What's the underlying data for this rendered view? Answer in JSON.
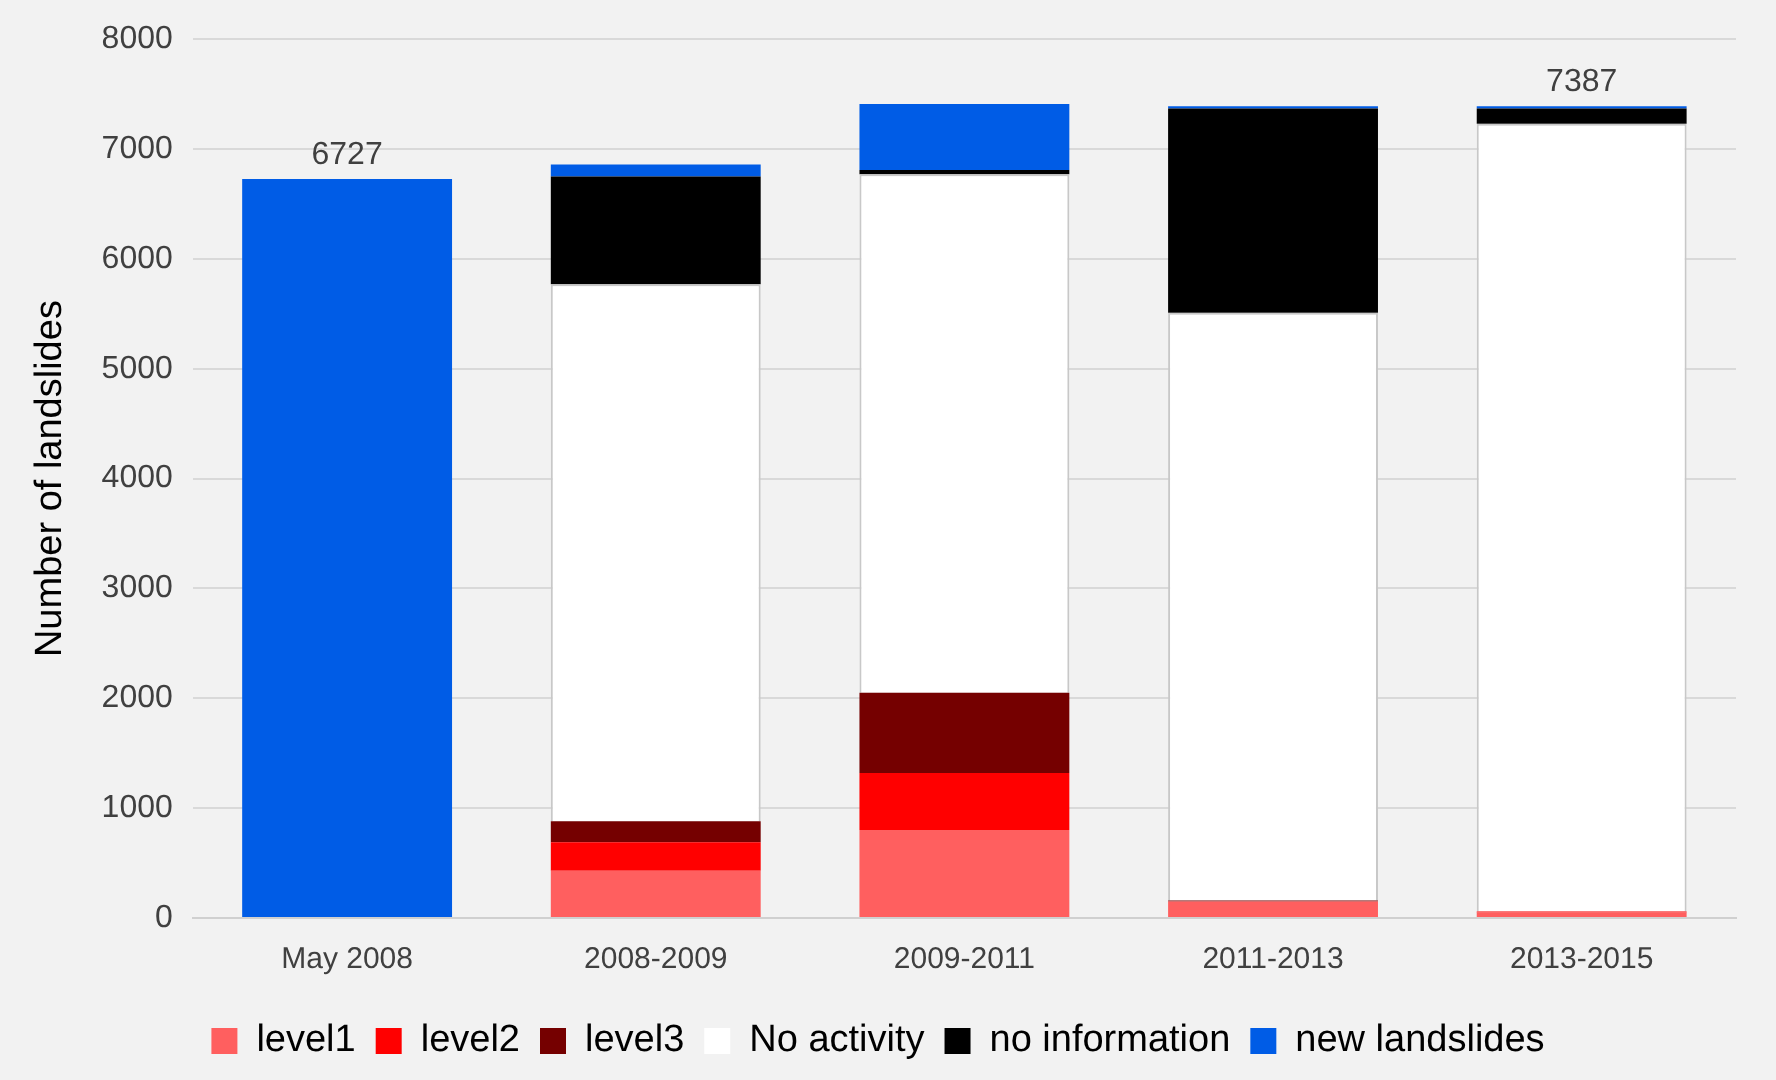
{
  "chart_data": {
    "type": "bar",
    "stacked": true,
    "ylabel": "Number of landslides",
    "categories": [
      "May 2008",
      "2008-2009",
      "2009-2011",
      "2011-2013",
      "2013-2015"
    ],
    "series": [
      {
        "name": "level1",
        "color": "#ff5f5f",
        "values": [
          0,
          430,
          800,
          150,
          50
        ]
      },
      {
        "name": "level2",
        "color": "#ff0000",
        "values": [
          0,
          260,
          520,
          0,
          10
        ]
      },
      {
        "name": "level3",
        "color": "#750000",
        "values": [
          0,
          190,
          730,
          10,
          0
        ]
      },
      {
        "name": "No activity",
        "color": "#ffffff",
        "values": [
          0,
          4890,
          4720,
          5350,
          7170
        ]
      },
      {
        "name": "no information",
        "color": "#000000",
        "values": [
          0,
          980,
          40,
          1860,
          140
        ]
      },
      {
        "name": "new landslides",
        "color": "#005ce6",
        "values": [
          6727,
          110,
          600,
          20,
          20
        ]
      }
    ],
    "totals": [
      "6727",
      null,
      null,
      null,
      "7387"
    ],
    "ylim": [
      0,
      8000
    ],
    "yticks": [
      0,
      1000,
      2000,
      3000,
      4000,
      5000,
      6000,
      7000,
      8000
    ],
    "grid": "y",
    "legend": "bottom"
  }
}
